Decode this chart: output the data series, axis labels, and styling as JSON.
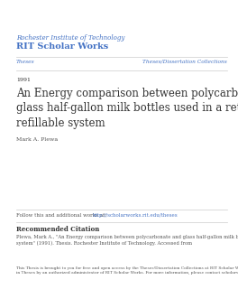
{
  "background_color": "#ffffff",
  "header_institution": "Rochester Institute of Technology",
  "header_repository": "RIT Scholar Works",
  "header_color": "#4472c4",
  "nav_left": "Theses",
  "nav_right": "Theses/Dissertation Collections",
  "nav_color": "#4472c4",
  "year": "1991",
  "title": "An Energy comparison between polycarbonate and\nglass half-gallon milk bottles used in a returnable\nrefillable system",
  "author": "Mark A. Plewa",
  "follow_text": "Follow this and additional works at: ",
  "follow_link": "http://scholarworks.rit.edu/theses",
  "rec_citation_header": "Recommended Citation",
  "citation_body": "Plewa, Mark A., \"An Energy comparison between polycarbonate and glass half-gallon milk bottles used in a returnable refillable\nsystem\" (1991). Thesis. Rochester Institute of Technology. Accessed from",
  "disclaimer": "This Thesis is brought to you for free and open access by the Theses/Dissertation Collections at RIT Scholar Works. It has been accepted for inclusion\nin Theses by an authorized administrator of RIT Scholar Works. For more information, please contact scholarworks@rit.edu.",
  "line_color": "#cccccc",
  "body_text_color": "#333333",
  "small_text_color": "#555555",
  "header_inst_fontsize": 5.0,
  "header_repo_fontsize": 7.0,
  "nav_fontsize": 4.2,
  "year_fontsize": 4.5,
  "title_fontsize": 8.5,
  "author_fontsize": 4.5,
  "follow_fontsize": 4.0,
  "citation_header_fontsize": 5.0,
  "citation_body_fontsize": 3.8,
  "disclaimer_fontsize": 3.2
}
